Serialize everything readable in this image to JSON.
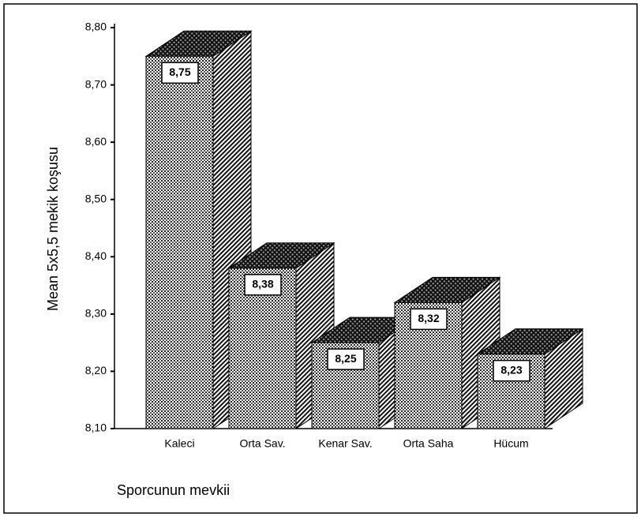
{
  "chart_data": {
    "type": "bar3d",
    "axis_label_y": "Mean 5x5,5 mekik koşusu",
    "axis_label_x": "Sporcunun mevkii",
    "categories": [
      "Kaleci",
      "Orta Sav.",
      "Kenar Sav.",
      "Orta Saha",
      "Hücum"
    ],
    "values": [
      8.75,
      8.38,
      8.25,
      8.32,
      8.23
    ],
    "value_labels": [
      "8,75",
      "8,38",
      "8,25",
      "8,32",
      "8,23"
    ],
    "ylim": [
      8.1,
      8.8
    ],
    "yticks": [
      {
        "value": 8.1,
        "label": "8,10"
      },
      {
        "value": 8.2,
        "label": "8,20"
      },
      {
        "value": 8.3,
        "label": "8,30"
      },
      {
        "value": 8.4,
        "label": "8,40"
      },
      {
        "value": 8.5,
        "label": "8,50"
      },
      {
        "value": 8.6,
        "label": "8,60"
      },
      {
        "value": 8.7,
        "label": "8,70"
      },
      {
        "value": 8.8,
        "label": "8,80"
      }
    ]
  }
}
